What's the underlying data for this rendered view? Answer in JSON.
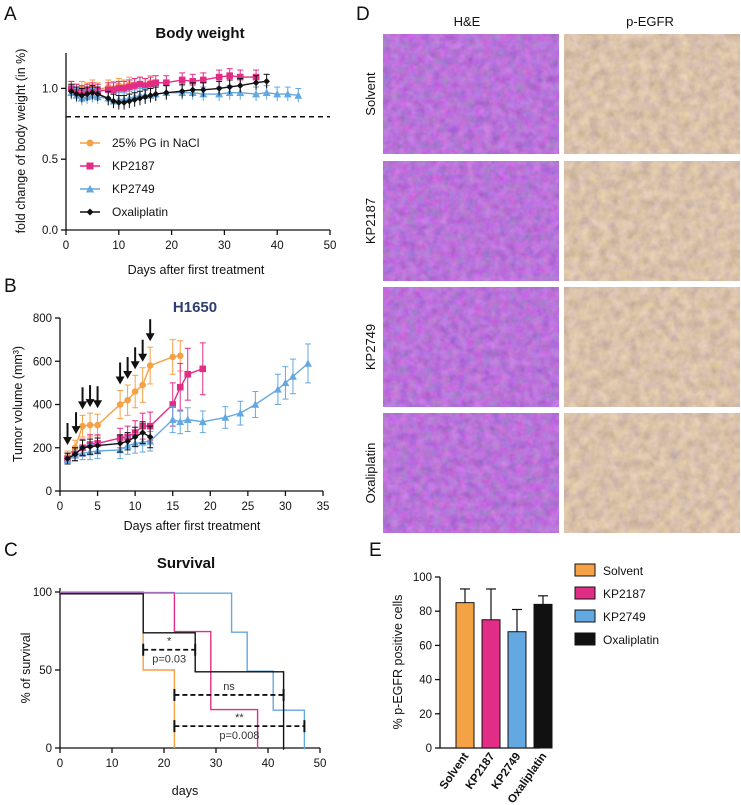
{
  "panels": {
    "A": "A",
    "B": "B",
    "C": "C",
    "D": "D",
    "E": "E"
  },
  "colors": {
    "solvent": "#f5a146",
    "kp2187": "#e22d86",
    "kp2749": "#64a8e2",
    "oxaliplatin": "#111111",
    "he_tissue": "#7a3fa0",
    "egfr_tissue": "#c49a63"
  },
  "chart_data": [
    {
      "id": "A",
      "type": "line",
      "title": "Body weight",
      "xlabel": "Days after first treatment",
      "ylabel": "fold change of body weight (in %)",
      "xlim": [
        0,
        50
      ],
      "ylim": [
        0,
        1.25
      ],
      "xticks": [
        "0",
        "10",
        "20",
        "30",
        "40",
        "50"
      ],
      "yticks": [
        "0.0",
        "0.5",
        "1.0"
      ],
      "reference_line": 0.8,
      "series": [
        {
          "name": "25% PG in NaCl",
          "marker": "circle",
          "color": "#f5a146",
          "x": [
            1,
            2,
            3,
            4,
            5,
            6,
            8,
            9,
            10,
            11,
            12,
            13,
            14,
            15,
            16
          ],
          "y": [
            1.0,
            0.98,
            1.0,
            0.99,
            1.01,
            0.99,
            1.01,
            1.0,
            1.02,
            1.01,
            1.03,
            1.02,
            1.03,
            1.02,
            1.04
          ]
        },
        {
          "name": "KP2187",
          "marker": "square",
          "color": "#e22d86",
          "x": [
            1,
            2,
            3,
            4,
            5,
            6,
            8,
            9,
            10,
            11,
            12,
            13,
            14,
            15,
            16,
            17,
            19,
            22,
            24,
            26,
            29,
            31,
            33,
            36
          ],
          "y": [
            1.0,
            0.98,
            0.97,
            0.98,
            0.99,
            0.98,
            0.99,
            0.99,
            1.0,
            1.0,
            1.01,
            1.02,
            1.03,
            1.02,
            1.03,
            1.04,
            1.04,
            1.06,
            1.05,
            1.06,
            1.08,
            1.09,
            1.08,
            1.08
          ]
        },
        {
          "name": "KP2749",
          "marker": "triangle",
          "color": "#64a8e2",
          "x": [
            1,
            2,
            3,
            4,
            5,
            6,
            8,
            9,
            10,
            11,
            12,
            13,
            14,
            15,
            16,
            17,
            19,
            22,
            24,
            26,
            29,
            31,
            33,
            36,
            38,
            40,
            42,
            44
          ],
          "y": [
            0.97,
            0.95,
            0.93,
            0.94,
            0.95,
            0.94,
            0.93,
            0.91,
            0.92,
            0.92,
            0.93,
            0.94,
            0.95,
            0.95,
            0.95,
            0.96,
            0.97,
            0.97,
            0.97,
            0.96,
            0.96,
            0.97,
            0.97,
            0.96,
            0.97,
            0.96,
            0.96,
            0.95
          ]
        },
        {
          "name": "Oxaliplatin",
          "marker": "diamond",
          "color": "#111111",
          "x": [
            1,
            2,
            3,
            4,
            5,
            6,
            8,
            9,
            10,
            11,
            12,
            13,
            14,
            15,
            16,
            17,
            19,
            22,
            24,
            26,
            29,
            31,
            33,
            36,
            38
          ],
          "y": [
            0.98,
            0.96,
            0.95,
            0.96,
            0.97,
            0.96,
            0.93,
            0.91,
            0.9,
            0.9,
            0.91,
            0.92,
            0.93,
            0.94,
            0.95,
            0.96,
            0.97,
            0.98,
            0.99,
            0.99,
            1.0,
            1.01,
            1.02,
            1.04,
            1.05
          ]
        }
      ],
      "legend_position": "center-left"
    },
    {
      "id": "B",
      "type": "line",
      "title": "H1650",
      "xlabel": "Days after first treatment",
      "ylabel": "Tumor volume (mm³)",
      "xlim": [
        0,
        35
      ],
      "ylim": [
        0,
        800
      ],
      "xticks": [
        "0",
        "5",
        "10",
        "15",
        "20",
        "25",
        "30",
        "35"
      ],
      "yticks": [
        "0",
        "200",
        "400",
        "600",
        "800"
      ],
      "treatment_days": [
        1,
        2,
        3,
        4,
        5,
        8,
        9,
        10,
        11,
        12
      ],
      "series": [
        {
          "name": "25% PG in NaCl",
          "color": "#f5a146",
          "marker": "circle",
          "x": [
            1,
            2,
            3,
            4,
            5,
            8,
            9,
            10,
            11,
            12,
            15,
            16
          ],
          "y": [
            160,
            200,
            300,
            305,
            305,
            400,
            420,
            460,
            490,
            580,
            620,
            625
          ],
          "err": [
            25,
            35,
            50,
            55,
            50,
            65,
            70,
            75,
            80,
            85,
            80,
            70
          ]
        },
        {
          "name": "KP2187",
          "color": "#e22d86",
          "marker": "square",
          "x": [
            1,
            2,
            3,
            4,
            5,
            8,
            9,
            10,
            11,
            12,
            15,
            16,
            17,
            19
          ],
          "y": [
            150,
            170,
            200,
            215,
            220,
            245,
            250,
            270,
            300,
            300,
            400,
            480,
            540,
            565
          ],
          "err": [
            25,
            30,
            40,
            45,
            40,
            45,
            50,
            55,
            60,
            65,
            100,
            110,
            120,
            120
          ]
        },
        {
          "name": "KP2749",
          "color": "#64a8e2",
          "marker": "triangle",
          "x": [
            1,
            2,
            3,
            4,
            5,
            8,
            9,
            10,
            11,
            12,
            15,
            16,
            17,
            19,
            22,
            24,
            26,
            29,
            30,
            31,
            33
          ],
          "y": [
            145,
            165,
            175,
            180,
            185,
            190,
            210,
            220,
            225,
            230,
            330,
            320,
            330,
            320,
            340,
            360,
            400,
            470,
            500,
            530,
            590
          ],
          "err": [
            20,
            25,
            30,
            35,
            35,
            40,
            40,
            45,
            45,
            45,
            60,
            55,
            55,
            50,
            50,
            55,
            60,
            70,
            75,
            80,
            90
          ]
        },
        {
          "name": "Oxaliplatin",
          "color": "#111111",
          "marker": "diamond",
          "x": [
            1,
            2,
            3,
            4,
            5,
            8,
            9,
            10,
            11,
            12
          ],
          "y": [
            150,
            170,
            200,
            205,
            210,
            220,
            230,
            250,
            270,
            250
          ],
          "err": [
            25,
            30,
            35,
            35,
            35,
            40,
            40,
            45,
            50,
            50
          ]
        }
      ]
    },
    {
      "id": "C",
      "type": "line",
      "title": "Survival",
      "xlabel": "days",
      "ylabel": "% of survival",
      "xlim": [
        0,
        50
      ],
      "ylim": [
        0,
        100
      ],
      "xticks": [
        "0",
        "10",
        "20",
        "30",
        "40",
        "50"
      ],
      "yticks": [
        "0",
        "50",
        "100"
      ],
      "series": [
        {
          "name": "Solvent",
          "color": "#f5a146",
          "steps": [
            [
              0,
              100
            ],
            [
              16,
              100
            ],
            [
              16,
              50
            ],
            [
              22,
              50
            ],
            [
              22,
              0
            ]
          ]
        },
        {
          "name": "KP2187",
          "color": "#e22d86",
          "steps": [
            [
              0,
              100
            ],
            [
              22,
              100
            ],
            [
              22,
              75
            ],
            [
              29,
              75
            ],
            [
              29,
              25
            ],
            [
              38,
              25
            ],
            [
              38,
              0
            ]
          ]
        },
        {
          "name": "KP2749",
          "color": "#64a8e2",
          "steps": [
            [
              0,
              100
            ],
            [
              33,
              100
            ],
            [
              33,
              75
            ],
            [
              36,
              75
            ],
            [
              36,
              50
            ],
            [
              41,
              50
            ],
            [
              41,
              25
            ],
            [
              47,
              25
            ],
            [
              47,
              0
            ]
          ]
        },
        {
          "name": "Oxaliplatin",
          "color": "#111111",
          "steps": [
            [
              0,
              100
            ],
            [
              16,
              100
            ],
            [
              16,
              75
            ],
            [
              26,
              75
            ],
            [
              26,
              50
            ],
            [
              43,
              50
            ],
            [
              43,
              0
            ]
          ]
        }
      ],
      "annotations": [
        {
          "symbol": "*",
          "p": "p=0.03",
          "from": 16,
          "to": 26,
          "y": 63
        },
        {
          "symbol": "ns",
          "p": "",
          "from": 22,
          "to": 43,
          "y": 34
        },
        {
          "symbol": "**",
          "p": "p=0.008",
          "from": 22,
          "to": 47,
          "y": 14
        }
      ]
    },
    {
      "id": "E",
      "type": "bar",
      "title": "",
      "xlabel": "",
      "ylabel": "% p-EGFR positive cells",
      "ylim": [
        0,
        100
      ],
      "yticks": [
        "0",
        "20",
        "40",
        "60",
        "80",
        "100"
      ],
      "categories": [
        "Solvent",
        "KP2187",
        "KP2749",
        "Oxaliplatin"
      ],
      "values": [
        85,
        75,
        68,
        84
      ],
      "errors": [
        8,
        18,
        13,
        5
      ],
      "colors": [
        "#f5a146",
        "#e22d86",
        "#64a8e2",
        "#111111"
      ],
      "legend": [
        "Solvent",
        "KP2187",
        "KP2749",
        "Oxaliplatin"
      ]
    }
  ],
  "histology": {
    "columns": [
      "H&E",
      "p-EGFR"
    ],
    "rows": [
      "Solvent",
      "KP2187",
      "KP2749",
      "Oxaliplatin"
    ]
  }
}
